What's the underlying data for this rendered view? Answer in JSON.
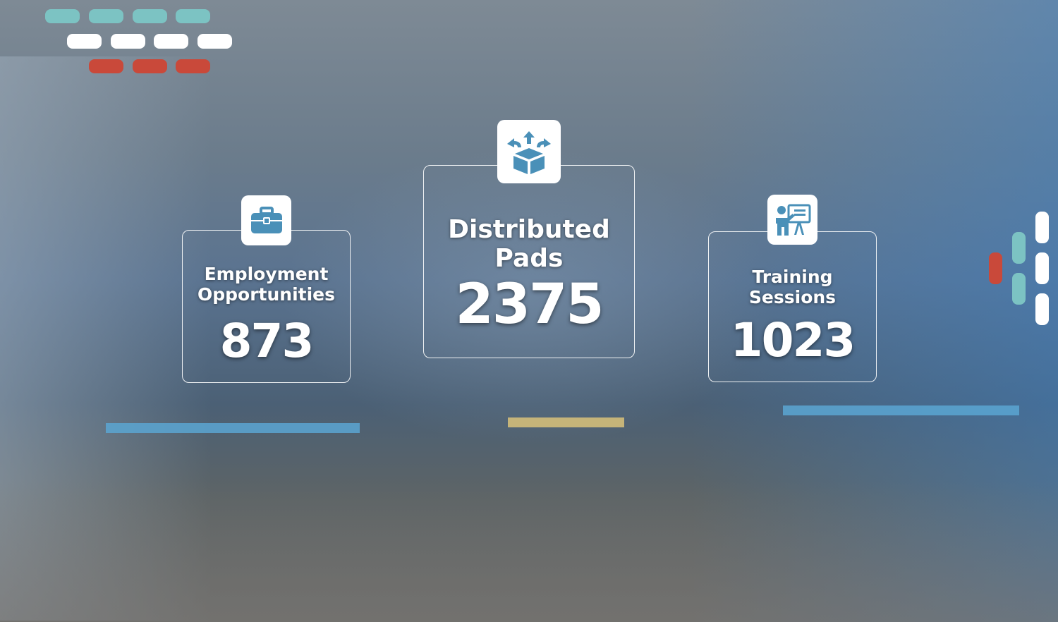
{
  "stats": [
    {
      "title_line1": "Employment",
      "title_line2": "Opportunities",
      "value": "873",
      "icon": "briefcase-icon"
    },
    {
      "title_line1": "Distributed",
      "title_line2": "Pads",
      "value": "2375",
      "icon": "box-distribute-icon"
    },
    {
      "title_line1": "Training",
      "title_line2": "Sessions",
      "value": "1023",
      "icon": "presenter-board-icon"
    }
  ],
  "colors": {
    "accent_teal": "#7cc3c3",
    "accent_red": "#c9493a",
    "icon_blue": "#4a90b8"
  }
}
